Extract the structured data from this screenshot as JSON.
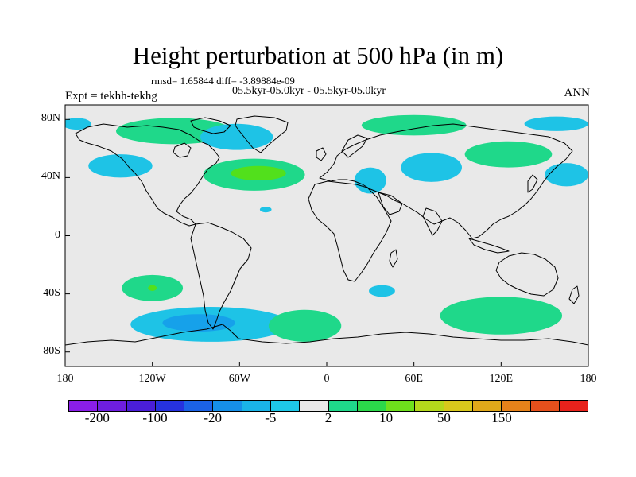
{
  "title": "Height perturbation at 500 hPa (in m)",
  "stats": "rmsd= 1.65844 diff= -3.89884e-09",
  "subtitle": "05.5kyr-05.0kyr - 05.5kyr-05.0kyr",
  "expt": "Expt = tekhh-tekhg",
  "season": "ANN",
  "map": {
    "lon_range": [
      -180,
      180
    ],
    "lat_range": [
      -90,
      90
    ],
    "x_ticks": [
      {
        "value": -180,
        "label": "180"
      },
      {
        "value": -120,
        "label": "120W"
      },
      {
        "value": -60,
        "label": "60W"
      },
      {
        "value": 0,
        "label": "0"
      },
      {
        "value": 60,
        "label": "60E"
      },
      {
        "value": 120,
        "label": "120E"
      },
      {
        "value": 180,
        "label": "180"
      }
    ],
    "y_ticks": [
      {
        "value": 80,
        "label": "80N"
      },
      {
        "value": 40,
        "label": "40N"
      },
      {
        "value": 0,
        "label": "0"
      },
      {
        "value": -40,
        "label": "40S"
      },
      {
        "value": -80,
        "label": "80S"
      }
    ],
    "background_color": "#e9e9e9",
    "anomalies": [
      {
        "name": "arctic-canada",
        "lon": -105,
        "lat": 72,
        "rlon": 40,
        "rlat": 9,
        "color": "#1fd88a"
      },
      {
        "name": "greenland-low",
        "lon": -62,
        "lat": 68,
        "rlon": 25,
        "rlat": 9,
        "color": "#1ec3e6"
      },
      {
        "name": "north-pacific-low",
        "lon": -142,
        "lat": 48,
        "rlon": 22,
        "rlat": 8,
        "color": "#1ec3e6"
      },
      {
        "name": "alaska-low",
        "lon": -172,
        "lat": 77,
        "rlon": 10,
        "rlat": 4,
        "color": "#1ec3e6"
      },
      {
        "name": "north-atlantic-high",
        "lon": -50,
        "lat": 42,
        "rlon": 35,
        "rlat": 11,
        "color": "#1fd88a"
      },
      {
        "name": "north-atlantic-high-core",
        "lon": -47,
        "lat": 43,
        "rlon": 19,
        "rlat": 5,
        "color": "#52e01c"
      },
      {
        "name": "siberia-high",
        "lon": 60,
        "lat": 76,
        "rlon": 36,
        "rlat": 7,
        "color": "#1fd88a"
      },
      {
        "name": "central-asia-low",
        "lon": 72,
        "lat": 47,
        "rlon": 21,
        "rlat": 10,
        "color": "#1ec3e6"
      },
      {
        "name": "mediterranean-low",
        "lon": 30,
        "lat": 38,
        "rlon": 11,
        "rlat": 9,
        "color": "#1ec3e6"
      },
      {
        "name": "east-asia-high",
        "lon": 125,
        "lat": 56,
        "rlon": 30,
        "rlat": 9,
        "color": "#1fd88a"
      },
      {
        "name": "bering-low",
        "lon": 158,
        "lat": 77,
        "rlon": 22,
        "rlat": 5,
        "color": "#1ec3e6"
      },
      {
        "name": "kamchatka-low",
        "lon": 165,
        "lat": 42,
        "rlon": 15,
        "rlat": 8,
        "color": "#1ec3e6"
      },
      {
        "name": "atlantic-small-low",
        "lon": -42,
        "lat": 18,
        "rlon": 4,
        "rlat": 2,
        "color": "#1ec3e6"
      },
      {
        "name": "south-pacific-high",
        "lon": -120,
        "lat": -36,
        "rlon": 21,
        "rlat": 9,
        "color": "#1fd88a"
      },
      {
        "name": "south-pacific-high-core",
        "lon": -120,
        "lat": -36,
        "rlon": 3,
        "rlat": 2,
        "color": "#52e01c"
      },
      {
        "name": "southern-ocean-low",
        "lon": -80,
        "lat": -61,
        "rlon": 55,
        "rlat": 12,
        "color": "#1ec3e6"
      },
      {
        "name": "southern-ocean-low-inner",
        "lon": -88,
        "lat": -60,
        "rlon": 25,
        "rlat": 6,
        "color": "#16a1ea"
      },
      {
        "name": "south-atlantic-high",
        "lon": -15,
        "lat": -62,
        "rlon": 25,
        "rlat": 11,
        "color": "#1fd88a"
      },
      {
        "name": "indian-ocean-low",
        "lon": 38,
        "lat": -38,
        "rlon": 9,
        "rlat": 4,
        "color": "#1ec3e6"
      },
      {
        "name": "south-indian-high",
        "lon": 120,
        "lat": -55,
        "rlon": 42,
        "rlat": 13,
        "color": "#1fd88a"
      }
    ]
  },
  "colorbar": {
    "colors": [
      "#8a1ee8",
      "#6e1ee0",
      "#4a1ed8",
      "#2632de",
      "#1b62e6",
      "#168fe8",
      "#1ab4e8",
      "#1ec8e8",
      "#e9e9e9",
      "#1fd88a",
      "#2bd84a",
      "#6ee01c",
      "#b4d81c",
      "#d8c81c",
      "#e0a81a",
      "#e6821a",
      "#e6501c",
      "#e8221c"
    ],
    "labels": [
      {
        "after_box": 1,
        "label": "-200"
      },
      {
        "after_box": 3,
        "label": "-100"
      },
      {
        "after_box": 5,
        "label": "-20"
      },
      {
        "after_box": 7,
        "label": "-5"
      },
      {
        "after_box": 9,
        "label": "2"
      },
      {
        "after_box": 11,
        "label": "10"
      },
      {
        "after_box": 13,
        "label": "50"
      },
      {
        "after_box": 15,
        "label": "150"
      }
    ]
  }
}
